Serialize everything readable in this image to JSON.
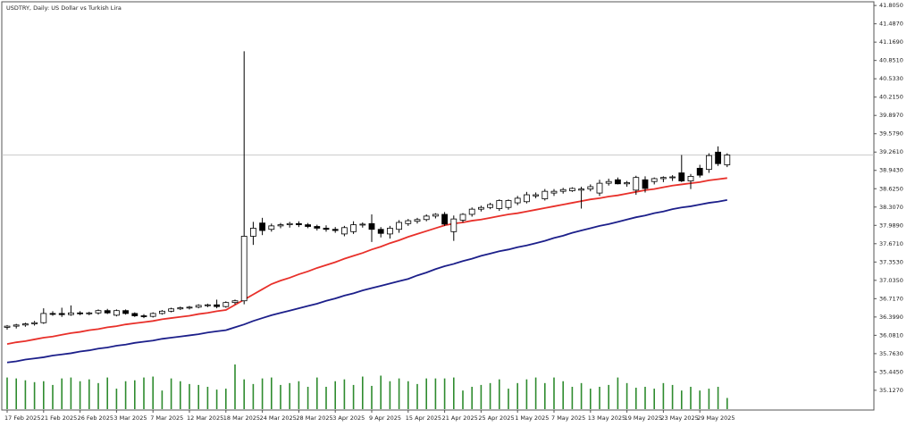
{
  "chart_data": {
    "type": "candlestick",
    "title": "USDTRY, Daily: US Dollar vs Turkish Lira",
    "categories": [
      "17 Feb 2025",
      null,
      null,
      null,
      "21 Feb 2025",
      null,
      null,
      null,
      "26 Feb 2025",
      null,
      null,
      null,
      "3 Mar 2025",
      null,
      null,
      null,
      "7 Mar 2025",
      null,
      null,
      null,
      "12 Mar 2025",
      null,
      null,
      null,
      "18 Mar 2025",
      null,
      null,
      null,
      "24 Mar 2025",
      null,
      null,
      null,
      "28 Mar 2025",
      null,
      null,
      null,
      "3 Apr 2025",
      null,
      null,
      null,
      "9 Apr 2025",
      null,
      null,
      null,
      "15 Apr 2025",
      null,
      null,
      null,
      "21 Apr 2025",
      null,
      null,
      null,
      "25 Apr 2025",
      null,
      null,
      null,
      "1 May 2025",
      null,
      null,
      null,
      "7 May 2025",
      null,
      null,
      null,
      "13 May 2025",
      null,
      null,
      null,
      "19 May 2025",
      null,
      null,
      null,
      "23 May 2025",
      null,
      null,
      null,
      "29 May 2025",
      null,
      null,
      null
    ],
    "open": [
      36.22,
      36.24,
      36.26,
      36.28,
      36.3,
      36.46,
      36.46,
      36.44,
      36.47,
      36.46,
      36.47,
      36.51,
      36.43,
      36.51,
      36.46,
      36.42,
      36.41,
      36.46,
      36.5,
      36.54,
      36.56,
      36.57,
      36.6,
      36.61,
      36.58,
      36.65,
      36.68,
      37.8,
      38.03,
      37.92,
      37.98,
      38.0,
      38.02,
      38.0,
      37.97,
      37.94,
      37.92,
      37.84,
      37.88,
      38.0,
      38.02,
      37.92,
      37.84,
      37.92,
      38.02,
      38.06,
      38.09,
      38.15,
      38.18,
      37.88,
      38.08,
      38.18,
      38.27,
      38.3,
      38.28,
      38.3,
      38.38,
      38.4,
      38.5,
      38.45,
      38.55,
      38.58,
      38.59,
      38.6,
      38.62,
      38.55,
      38.72,
      38.78,
      38.71,
      38.6,
      38.78,
      38.75,
      38.8,
      38.82,
      38.9,
      38.76,
      38.98,
      38.96,
      39.26,
      39.04
    ],
    "high": [
      36.26,
      36.28,
      36.3,
      36.33,
      36.55,
      36.5,
      36.56,
      36.6,
      36.5,
      36.49,
      36.53,
      36.54,
      36.53,
      36.53,
      36.48,
      36.45,
      36.48,
      36.52,
      36.56,
      36.58,
      36.59,
      36.62,
      36.63,
      36.7,
      36.67,
      36.7,
      41.01,
      38.05,
      38.12,
      38.02,
      38.03,
      38.05,
      38.06,
      38.03,
      38.0,
      37.99,
      37.96,
      37.98,
      38.06,
      38.04,
      38.18,
      37.96,
      37.98,
      38.08,
      38.1,
      38.12,
      38.18,
      38.2,
      38.22,
      38.16,
      38.2,
      38.3,
      38.33,
      38.38,
      38.44,
      38.44,
      38.5,
      38.57,
      38.56,
      38.62,
      38.62,
      38.64,
      38.65,
      38.66,
      38.7,
      38.78,
      38.8,
      38.82,
      38.76,
      38.85,
      38.84,
      38.82,
      38.84,
      38.86,
      39.21,
      38.88,
      39.04,
      39.24,
      39.36,
      39.24
    ],
    "low": [
      36.18,
      36.2,
      36.23,
      36.25,
      36.28,
      36.42,
      36.4,
      36.42,
      36.43,
      36.43,
      36.44,
      36.45,
      36.41,
      36.44,
      36.4,
      36.38,
      36.39,
      36.44,
      36.48,
      36.52,
      36.53,
      36.55,
      36.57,
      36.55,
      36.56,
      36.62,
      36.62,
      37.65,
      37.82,
      37.88,
      37.94,
      37.95,
      37.96,
      37.94,
      37.9,
      37.88,
      37.86,
      37.8,
      37.84,
      37.95,
      37.7,
      37.78,
      37.76,
      37.86,
      37.98,
      38.02,
      38.06,
      38.11,
      37.98,
      37.72,
      38.04,
      38.14,
      38.23,
      38.27,
      38.24,
      38.26,
      38.34,
      38.37,
      38.46,
      38.42,
      38.5,
      38.54,
      38.57,
      38.28,
      38.58,
      38.5,
      38.68,
      38.7,
      38.66,
      38.52,
      38.56,
      38.7,
      38.74,
      38.76,
      38.74,
      38.62,
      38.82,
      38.9,
      39.02,
      39.0
    ],
    "close": [
      36.24,
      36.26,
      36.28,
      36.3,
      36.46,
      36.45,
      36.44,
      36.47,
      36.46,
      36.47,
      36.51,
      36.47,
      36.51,
      36.46,
      36.42,
      36.41,
      36.46,
      36.5,
      36.54,
      36.56,
      36.57,
      36.6,
      36.61,
      36.58,
      36.65,
      36.68,
      37.8,
      37.94,
      37.9,
      37.98,
      38.0,
      38.02,
      38.0,
      37.97,
      37.94,
      37.92,
      37.9,
      37.95,
      38.0,
      38.01,
      37.92,
      37.85,
      37.94,
      38.04,
      38.07,
      38.09,
      38.15,
      38.18,
      38.01,
      38.1,
      38.18,
      38.27,
      38.3,
      38.35,
      38.42,
      38.42,
      38.46,
      38.52,
      38.52,
      38.58,
      38.58,
      38.61,
      38.63,
      38.62,
      38.66,
      38.72,
      38.75,
      38.71,
      38.73,
      38.82,
      38.63,
      38.8,
      38.82,
      38.83,
      38.76,
      38.84,
      38.86,
      39.2,
      39.06,
      39.21
    ],
    "volume": [
      34,
      33,
      31,
      29,
      30,
      26,
      33,
      34,
      30,
      32,
      28,
      34,
      22,
      30,
      31,
      34,
      35,
      20,
      33,
      30,
      27,
      26,
      24,
      21,
      22,
      48,
      32,
      27,
      33,
      34,
      26,
      28,
      30,
      24,
      34,
      24,
      30,
      32,
      26,
      35,
      25,
      36,
      30,
      33,
      30,
      27,
      33,
      33,
      33,
      34,
      20,
      24,
      26,
      28,
      32,
      22,
      28,
      32,
      34,
      28,
      34,
      30,
      24,
      28,
      22,
      24,
      26,
      34,
      28,
      23,
      24,
      22,
      28,
      26,
      20,
      24,
      20,
      22,
      24,
      12
    ],
    "up_color": "#ffffff",
    "down_color": "#000000",
    "volume_color": "#2e8b2e",
    "lines": [
      {
        "color": "#e8302a",
        "values": [
          35.93,
          35.96,
          35.98,
          36.01,
          36.04,
          36.06,
          36.09,
          36.12,
          36.14,
          36.17,
          36.19,
          36.22,
          36.24,
          36.27,
          36.29,
          36.31,
          36.33,
          36.36,
          36.38,
          36.4,
          36.42,
          36.45,
          36.47,
          36.5,
          36.52,
          36.61,
          36.7,
          36.79,
          36.88,
          36.97,
          37.03,
          37.08,
          37.14,
          37.19,
          37.25,
          37.3,
          37.35,
          37.41,
          37.46,
          37.51,
          37.57,
          37.62,
          37.68,
          37.73,
          37.79,
          37.84,
          37.89,
          37.94,
          37.99,
          38.02,
          38.04,
          38.07,
          38.09,
          38.12,
          38.15,
          38.18,
          38.2,
          38.23,
          38.26,
          38.29,
          38.32,
          38.35,
          38.38,
          38.41,
          38.44,
          38.46,
          38.49,
          38.51,
          38.54,
          38.57,
          38.6,
          38.62,
          38.65,
          38.68,
          38.7,
          38.72,
          38.74,
          38.77,
          38.79,
          38.81
        ]
      },
      {
        "color": "#1c1f8a",
        "values": [
          35.61,
          35.63,
          35.66,
          35.68,
          35.7,
          35.73,
          35.75,
          35.77,
          35.8,
          35.82,
          35.85,
          35.87,
          35.9,
          35.92,
          35.95,
          35.97,
          35.99,
          36.02,
          36.04,
          36.06,
          36.08,
          36.1,
          36.13,
          36.15,
          36.17,
          36.22,
          36.27,
          36.33,
          36.38,
          36.43,
          36.47,
          36.51,
          36.55,
          36.59,
          36.63,
          36.68,
          36.72,
          36.77,
          36.81,
          36.86,
          36.9,
          36.94,
          36.98,
          37.02,
          37.06,
          37.12,
          37.17,
          37.23,
          37.28,
          37.32,
          37.37,
          37.41,
          37.46,
          37.5,
          37.54,
          37.57,
          37.61,
          37.64,
          37.68,
          37.72,
          37.77,
          37.81,
          37.86,
          37.9,
          37.94,
          37.98,
          38.01,
          38.05,
          38.09,
          38.13,
          38.16,
          38.2,
          38.23,
          38.27,
          38.3,
          38.32,
          38.35,
          38.38,
          38.4,
          38.43
        ]
      }
    ],
    "ylim": [
      34.8,
      41.9
    ],
    "yticks": [
      {
        "value": 41.805,
        "label": "41.8050"
      },
      {
        "value": 41.487,
        "label": "41.4870"
      },
      {
        "value": 41.169,
        "label": "41.1690"
      },
      {
        "value": 40.851,
        "label": "40.8510"
      },
      {
        "value": 40.533,
        "label": "40.5330"
      },
      {
        "value": 40.215,
        "label": "40.2150"
      },
      {
        "value": 39.897,
        "label": "39.8970"
      },
      {
        "value": 39.579,
        "label": "39.5790"
      },
      {
        "value": 39.261,
        "label": "39.2610"
      },
      {
        "value": 38.943,
        "label": "38.9430"
      },
      {
        "value": 38.625,
        "label": "38.6250"
      },
      {
        "value": 38.307,
        "label": "38.3070"
      },
      {
        "value": 37.989,
        "label": "37.9890"
      },
      {
        "value": 37.671,
        "label": "37.6710"
      },
      {
        "value": 37.353,
        "label": "37.3530"
      },
      {
        "value": 37.035,
        "label": "37.0350"
      },
      {
        "value": 36.717,
        "label": "36.7170"
      },
      {
        "value": 36.399,
        "label": "36.3990"
      },
      {
        "value": 36.081,
        "label": "36.0810"
      },
      {
        "value": 35.763,
        "label": "35.7630"
      },
      {
        "value": 35.445,
        "label": "35.4450"
      },
      {
        "value": 35.127,
        "label": "35.1270"
      }
    ]
  }
}
